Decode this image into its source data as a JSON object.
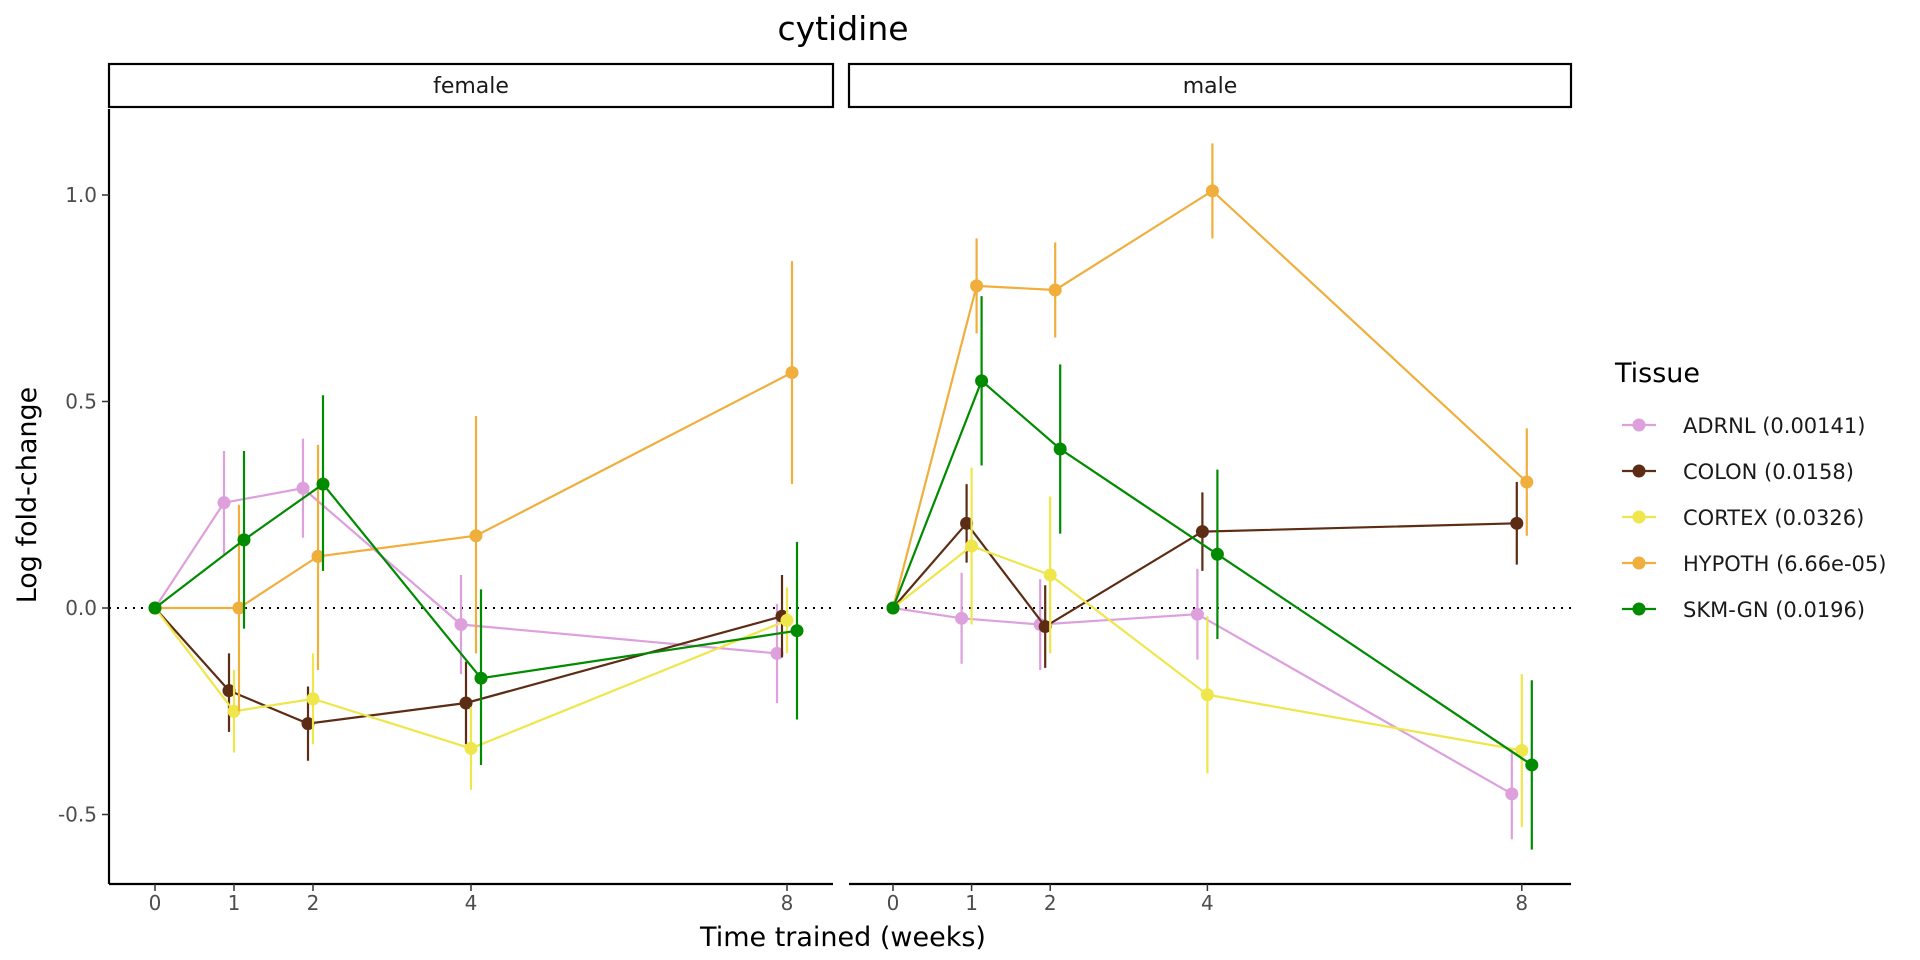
{
  "chart_data": {
    "type": "line",
    "title": "cytidine",
    "xlabel": "Time trained (weeks)",
    "ylabel": "Log fold-change",
    "x_ticks": [
      0,
      1,
      2,
      4,
      8
    ],
    "y_ticks": [
      -0.5,
      0.0,
      0.5,
      1.0
    ],
    "y_tick_labels": [
      "-0.5",
      "0.0",
      "0.5",
      "1.0"
    ],
    "ylim": [
      -0.67,
      1.22
    ],
    "reference_line_y": 0,
    "legend": {
      "title": "Tissue",
      "position": "right"
    },
    "grid": false,
    "panels": [
      {
        "name": "female",
        "series": [
          {
            "name": "ADRNL (0.00141)",
            "color": "#DDA0DD",
            "x": [
              0,
              1,
              2,
              4,
              8
            ],
            "y": [
              0,
              0.255,
              0.29,
              -0.04,
              -0.11
            ],
            "lo": [
              0,
              0.13,
              0.17,
              -0.16,
              -0.23
            ],
            "hi": [
              0,
              0.38,
              0.41,
              0.08,
              0.01
            ]
          },
          {
            "name": "COLON (0.0158)",
            "color": "#5C2C14",
            "x": [
              0,
              1,
              2,
              4,
              8
            ],
            "y": [
              0,
              -0.2,
              -0.28,
              -0.23,
              -0.02
            ],
            "lo": [
              0,
              -0.3,
              -0.37,
              -0.33,
              -0.12
            ],
            "hi": [
              0,
              -0.11,
              -0.19,
              -0.13,
              0.08
            ]
          },
          {
            "name": "CORTEX (0.0326)",
            "color": "#EEE64A",
            "x": [
              0,
              1,
              2,
              4,
              8
            ],
            "y": [
              0,
              -0.25,
              -0.22,
              -0.34,
              -0.03
            ],
            "lo": [
              0,
              -0.35,
              -0.33,
              -0.44,
              -0.11
            ],
            "hi": [
              0,
              -0.15,
              -0.11,
              -0.24,
              0.05
            ]
          },
          {
            "name": "HYPOTH (6.66e-05)",
            "color": "#F0AE3C",
            "x": [
              0,
              1,
              2,
              4,
              8
            ],
            "y": [
              0,
              0,
              0.125,
              0.175,
              0.57
            ],
            "lo": [
              0,
              -0.25,
              -0.15,
              -0.11,
              0.3
            ],
            "hi": [
              0,
              0.25,
              0.395,
              0.465,
              0.84
            ]
          },
          {
            "name": "SKM-GN (0.0196)",
            "color": "#008B00",
            "x": [
              0,
              1,
              2,
              4,
              8
            ],
            "y": [
              0,
              0.165,
              0.3,
              -0.17,
              -0.055
            ],
            "lo": [
              0,
              -0.05,
              0.09,
              -0.38,
              -0.27
            ],
            "hi": [
              0,
              0.38,
              0.515,
              0.045,
              0.16
            ]
          }
        ]
      },
      {
        "name": "male",
        "series": [
          {
            "name": "ADRNL (0.00141)",
            "color": "#DDA0DD",
            "x": [
              0,
              1,
              2,
              4,
              8
            ],
            "y": [
              0,
              -0.025,
              -0.04,
              -0.015,
              -0.45
            ],
            "lo": [
              0,
              -0.135,
              -0.15,
              -0.125,
              -0.56
            ],
            "hi": [
              0,
              0.085,
              0.07,
              0.095,
              -0.34
            ]
          },
          {
            "name": "COLON (0.0158)",
            "color": "#5C2C14",
            "x": [
              0,
              1,
              2,
              4,
              8
            ],
            "y": [
              0,
              0.205,
              -0.045,
              0.185,
              0.205
            ],
            "lo": [
              0,
              0.11,
              -0.145,
              0.09,
              0.105
            ],
            "hi": [
              0,
              0.3,
              0.055,
              0.28,
              0.305
            ]
          },
          {
            "name": "CORTEX (0.0326)",
            "color": "#EEE64A",
            "x": [
              0,
              1,
              2,
              4,
              8
            ],
            "y": [
              0,
              0.15,
              0.08,
              -0.21,
              -0.345
            ],
            "lo": [
              0,
              -0.04,
              -0.11,
              -0.4,
              -0.53
            ],
            "hi": [
              0,
              0.34,
              0.27,
              -0.02,
              -0.16
            ]
          },
          {
            "name": "HYPOTH (6.66e-05)",
            "color": "#F0AE3C",
            "x": [
              0,
              1,
              2,
              4,
              8
            ],
            "y": [
              0,
              0.78,
              0.77,
              1.01,
              0.305
            ],
            "lo": [
              0,
              0.665,
              0.655,
              0.895,
              0.175
            ],
            "hi": [
              0,
              0.895,
              0.885,
              1.125,
              0.435
            ]
          },
          {
            "name": "SKM-GN (0.0196)",
            "color": "#008B00",
            "x": [
              0,
              1,
              2,
              4,
              8
            ],
            "y": [
              0,
              0.55,
              0.385,
              0.13,
              -0.38
            ],
            "lo": [
              0,
              0.345,
              0.18,
              -0.075,
              -0.585
            ],
            "hi": [
              0,
              0.755,
              0.59,
              0.335,
              -0.175
            ]
          }
        ]
      }
    ]
  }
}
